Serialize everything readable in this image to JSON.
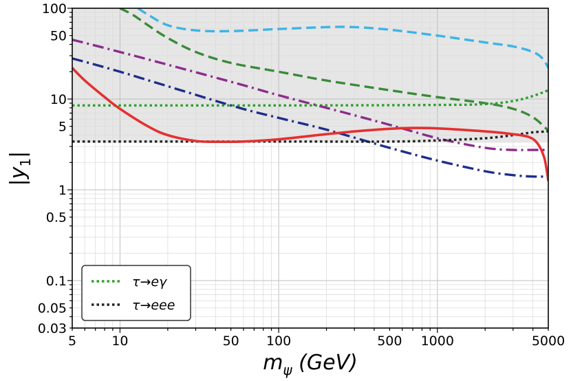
{
  "chart_data": {
    "type": "line",
    "title": "",
    "xlabel": "m_ψ (GeV)",
    "xlabel_main": "m",
    "xlabel_sub": "ψ",
    "xlabel_unit": " (GeV)",
    "ylabel": "|y1|",
    "ylabel_main": "|y",
    "ylabel_sub": "1",
    "ylabel_end": "|",
    "xscale": "log",
    "yscale": "log",
    "xlim": [
      5,
      5000
    ],
    "ylim": [
      0.03,
      100
    ],
    "grid": true,
    "x_ticks": [
      5,
      10,
      50,
      100,
      500,
      1000,
      5000
    ],
    "x_tick_labels": [
      "5",
      "10",
      "50",
      "100",
      "500",
      "1000",
      "5000"
    ],
    "y_ticks": [
      0.03,
      0.05,
      0.1,
      0.5,
      1,
      5,
      10,
      50,
      100
    ],
    "y_tick_labels": [
      "0.03",
      "0.05",
      "0.1",
      "0.5",
      "1",
      "5",
      "10",
      "50",
      "100"
    ],
    "shaded_region": {
      "y_from": 3.3,
      "y_to": 100,
      "color": "#e6e6e6"
    },
    "legend": {
      "position": "lower-left",
      "entries": [
        {
          "label": "τ→eγ",
          "color": "#2ca02c",
          "style": "dotted"
        },
        {
          "label": "τ→eee",
          "color": "#222222",
          "style": "dotted"
        }
      ]
    },
    "series": [
      {
        "name": "light-blue-dashed",
        "color": "#3cb4e6",
        "style": "dashed",
        "points": [
          [
            13,
            100
          ],
          [
            15,
            85
          ],
          [
            20,
            65
          ],
          [
            30,
            57
          ],
          [
            50,
            56
          ],
          [
            100,
            59
          ],
          [
            200,
            62
          ],
          [
            300,
            62
          ],
          [
            500,
            58
          ],
          [
            1000,
            50
          ],
          [
            2000,
            42
          ],
          [
            3000,
            38
          ],
          [
            4000,
            33
          ],
          [
            4600,
            28
          ],
          [
            5000,
            22
          ]
        ]
      },
      {
        "name": "green-dashed",
        "color": "#3a8a3a",
        "style": "dashed",
        "points": [
          [
            10,
            100
          ],
          [
            12,
            85
          ],
          [
            15,
            65
          ],
          [
            20,
            47
          ],
          [
            30,
            33
          ],
          [
            50,
            25
          ],
          [
            100,
            20
          ],
          [
            200,
            16
          ],
          [
            500,
            12.5
          ],
          [
            1000,
            10.5
          ],
          [
            2000,
            9
          ],
          [
            3000,
            7.8
          ],
          [
            4000,
            6.3
          ],
          [
            5000,
            4.5
          ]
        ]
      },
      {
        "name": "green-dotted",
        "color": "#2ca02c",
        "style": "dotted",
        "points": [
          [
            5,
            8.5
          ],
          [
            100,
            8.5
          ],
          [
            1000,
            8.6
          ],
          [
            2000,
            8.8
          ],
          [
            3000,
            9.5
          ],
          [
            4000,
            10.8
          ],
          [
            5000,
            12.5
          ]
        ]
      },
      {
        "name": "purple-dashdot",
        "color": "#8b2d8b",
        "style": "dashdot",
        "points": [
          [
            5,
            45
          ],
          [
            10,
            33
          ],
          [
            50,
            15.5
          ],
          [
            100,
            11
          ],
          [
            200,
            8
          ],
          [
            500,
            5.2
          ],
          [
            1000,
            3.7
          ],
          [
            2000,
            2.9
          ],
          [
            3000,
            2.75
          ],
          [
            4000,
            2.75
          ],
          [
            5000,
            2.75
          ]
        ]
      },
      {
        "name": "navy-dashdot",
        "color": "#1f2d8a",
        "style": "dashdot",
        "points": [
          [
            5,
            28
          ],
          [
            10,
            20
          ],
          [
            50,
            8.5
          ],
          [
            100,
            6.2
          ],
          [
            200,
            4.6
          ],
          [
            500,
            2.9
          ],
          [
            1000,
            2.1
          ],
          [
            2000,
            1.6
          ],
          [
            3000,
            1.45
          ],
          [
            4000,
            1.4
          ],
          [
            5000,
            1.4
          ]
        ]
      },
      {
        "name": "black-dotted",
        "color": "#222222",
        "style": "dotted",
        "points": [
          [
            5,
            3.4
          ],
          [
            100,
            3.4
          ],
          [
            500,
            3.4
          ],
          [
            1000,
            3.5
          ],
          [
            2000,
            3.7
          ],
          [
            3000,
            4
          ],
          [
            4000,
            4.3
          ],
          [
            5000,
            4.4
          ]
        ]
      },
      {
        "name": "red-solid",
        "color": "#e53030",
        "style": "solid",
        "points": [
          [
            5,
            22
          ],
          [
            6,
            16
          ],
          [
            8,
            10.5
          ],
          [
            10,
            7.8
          ],
          [
            15,
            5
          ],
          [
            20,
            4
          ],
          [
            30,
            3.45
          ],
          [
            40,
            3.38
          ],
          [
            60,
            3.4
          ],
          [
            100,
            3.6
          ],
          [
            200,
            4.1
          ],
          [
            300,
            4.4
          ],
          [
            500,
            4.7
          ],
          [
            700,
            4.8
          ],
          [
            1000,
            4.75
          ],
          [
            2000,
            4.4
          ],
          [
            3000,
            4.1
          ],
          [
            3800,
            3.8
          ],
          [
            4300,
            3.2
          ],
          [
            4700,
            2.3
          ],
          [
            4900,
            1.6
          ],
          [
            5000,
            1.25
          ]
        ]
      }
    ]
  }
}
